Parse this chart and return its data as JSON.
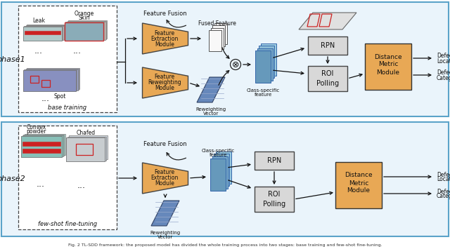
{
  "fig_width": 6.4,
  "fig_height": 3.55,
  "dpi": 100,
  "bg": "#ffffff",
  "panel_bg": "#EAF4FB",
  "panel_ec": "#5BA3C9",
  "orange": "#E8A855",
  "gray_box": "#C8C8C8",
  "gray_light": "#D8D8D8",
  "blue_stk": [
    "#6699BB",
    "#7AAAC8",
    "#8BBBD5",
    "#9CCCE0"
  ],
  "white_stk_fc": "#F8F8F8",
  "rw_blue": "#6688BB",
  "rw_stripe": "#99AACCCC",
  "black": "#222222",
  "phase1_label": "phase1",
  "phase2_label": "phase2",
  "base_lbl": "base training",
  "fewshot_lbl": "few-shot fine-tuning",
  "ff_lbl": "Feature Fusion",
  "fused_lbl": "Fused Feature",
  "rw_lbl1": "Reweighting",
  "rw_lbl2": "Vector",
  "cs_lbl1": "Class-specific",
  "cs_lbl2": "feature",
  "rpn_lbl": "RPN",
  "roi_lbl1": "ROI",
  "roi_lbl2": "Polling",
  "dmm_lbl1": "Distance",
  "dmm_lbl2": "Metric",
  "dmm_lbl3": "Module",
  "fem_lbl": [
    "Feature",
    "Extraction",
    "Module"
  ],
  "frm_lbl": [
    "Feature",
    "Reweighting",
    "Module"
  ],
  "dl1": "Defect",
  "dl2": "Location",
  "dc1": "Defect",
  "dc2": "Category",
  "caption": "Fig. 2 TL-SDD framework: the proposed model has divided the whole training process into two stages: base training and few-shot fine-tuning.",
  "leak_lbl": "Leak",
  "os_lbl1": "Orange",
  "os_lbl2": "Skin",
  "spot_lbl": "Spot",
  "conv_lbl1": "Convex",
  "conv_lbl2": "powder",
  "chafed_lbl": "Chafed"
}
